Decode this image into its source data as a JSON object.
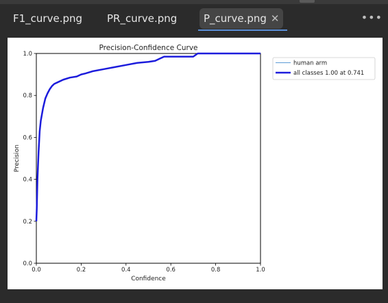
{
  "tabs": [
    {
      "label": "F1_curve.png",
      "active": false
    },
    {
      "label": "PR_curve.png",
      "active": false
    },
    {
      "label": "P_curve.png",
      "active": true
    }
  ],
  "icons": {
    "close": "close-icon",
    "more": "more-icon"
  },
  "colors": {
    "background": "#2b2b2b",
    "active_tab": "#454545",
    "accent": "#5b8fd8",
    "series_all": "#1c1cdc",
    "series_class": "#5b9bd5"
  },
  "chart_data": {
    "type": "line",
    "title": "Precision-Confidence Curve",
    "xlabel": "Confidence",
    "ylabel": "Precision",
    "xlim": [
      0,
      1
    ],
    "ylim": [
      0,
      1
    ],
    "xticks": [
      "0.0",
      "0.2",
      "0.4",
      "0.6",
      "0.8",
      "1.0"
    ],
    "yticks": [
      "0.0",
      "0.2",
      "0.4",
      "0.6",
      "0.8",
      "1.0"
    ],
    "grid": false,
    "legend_position": "outside-right-top",
    "series": [
      {
        "name": "human arm",
        "color": "#5b9bd5",
        "x": [
          0,
          0.002,
          0.005,
          0.01,
          0.015,
          0.02,
          0.03,
          0.04,
          0.05,
          0.06,
          0.07,
          0.08,
          0.1,
          0.12,
          0.15,
          0.18,
          0.2,
          0.22,
          0.25,
          0.3,
          0.35,
          0.4,
          0.45,
          0.5,
          0.53,
          0.55,
          0.57,
          0.6,
          0.65,
          0.7,
          0.72,
          0.74,
          0.8,
          0.9,
          1.0
        ],
        "y": [
          0.2,
          0.26,
          0.4,
          0.53,
          0.63,
          0.68,
          0.74,
          0.785,
          0.81,
          0.83,
          0.845,
          0.855,
          0.865,
          0.875,
          0.885,
          0.89,
          0.9,
          0.905,
          0.915,
          0.925,
          0.935,
          0.945,
          0.955,
          0.96,
          0.965,
          0.975,
          0.985,
          0.985,
          0.985,
          0.985,
          1.0,
          1.0,
          1.0,
          1.0,
          1.0
        ]
      },
      {
        "name": "all classes 1.00 at 0.741",
        "color": "#1c1cdc",
        "x": [
          0,
          0.002,
          0.005,
          0.01,
          0.015,
          0.02,
          0.03,
          0.04,
          0.05,
          0.06,
          0.07,
          0.08,
          0.1,
          0.12,
          0.15,
          0.18,
          0.2,
          0.22,
          0.25,
          0.3,
          0.35,
          0.4,
          0.45,
          0.5,
          0.53,
          0.55,
          0.57,
          0.6,
          0.65,
          0.7,
          0.72,
          0.74,
          0.8,
          0.9,
          1.0
        ],
        "y": [
          0.2,
          0.26,
          0.4,
          0.53,
          0.63,
          0.68,
          0.74,
          0.785,
          0.81,
          0.83,
          0.845,
          0.855,
          0.865,
          0.875,
          0.885,
          0.89,
          0.9,
          0.905,
          0.915,
          0.925,
          0.935,
          0.945,
          0.955,
          0.96,
          0.965,
          0.975,
          0.985,
          0.985,
          0.985,
          0.985,
          1.0,
          1.0,
          1.0,
          1.0,
          1.0
        ]
      }
    ]
  }
}
